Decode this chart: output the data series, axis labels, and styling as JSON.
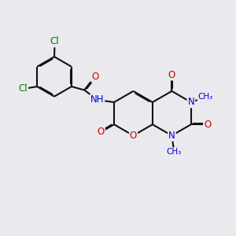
{
  "bg": "#eaeaee",
  "bc": "#111111",
  "bw": 1.5,
  "dbo": 0.038,
  "dbs": 0.12,
  "O_color": "#cc0000",
  "N_color": "#0000cc",
  "Cl_color": "#007700",
  "fs": 8.5,
  "fs2": 7.5,
  "xlim": [
    0,
    10
  ],
  "ylim": [
    0,
    10
  ],
  "rcx": 7.3,
  "rcy": 5.2,
  "r_ring": 0.95,
  "r_benz": 0.85
}
